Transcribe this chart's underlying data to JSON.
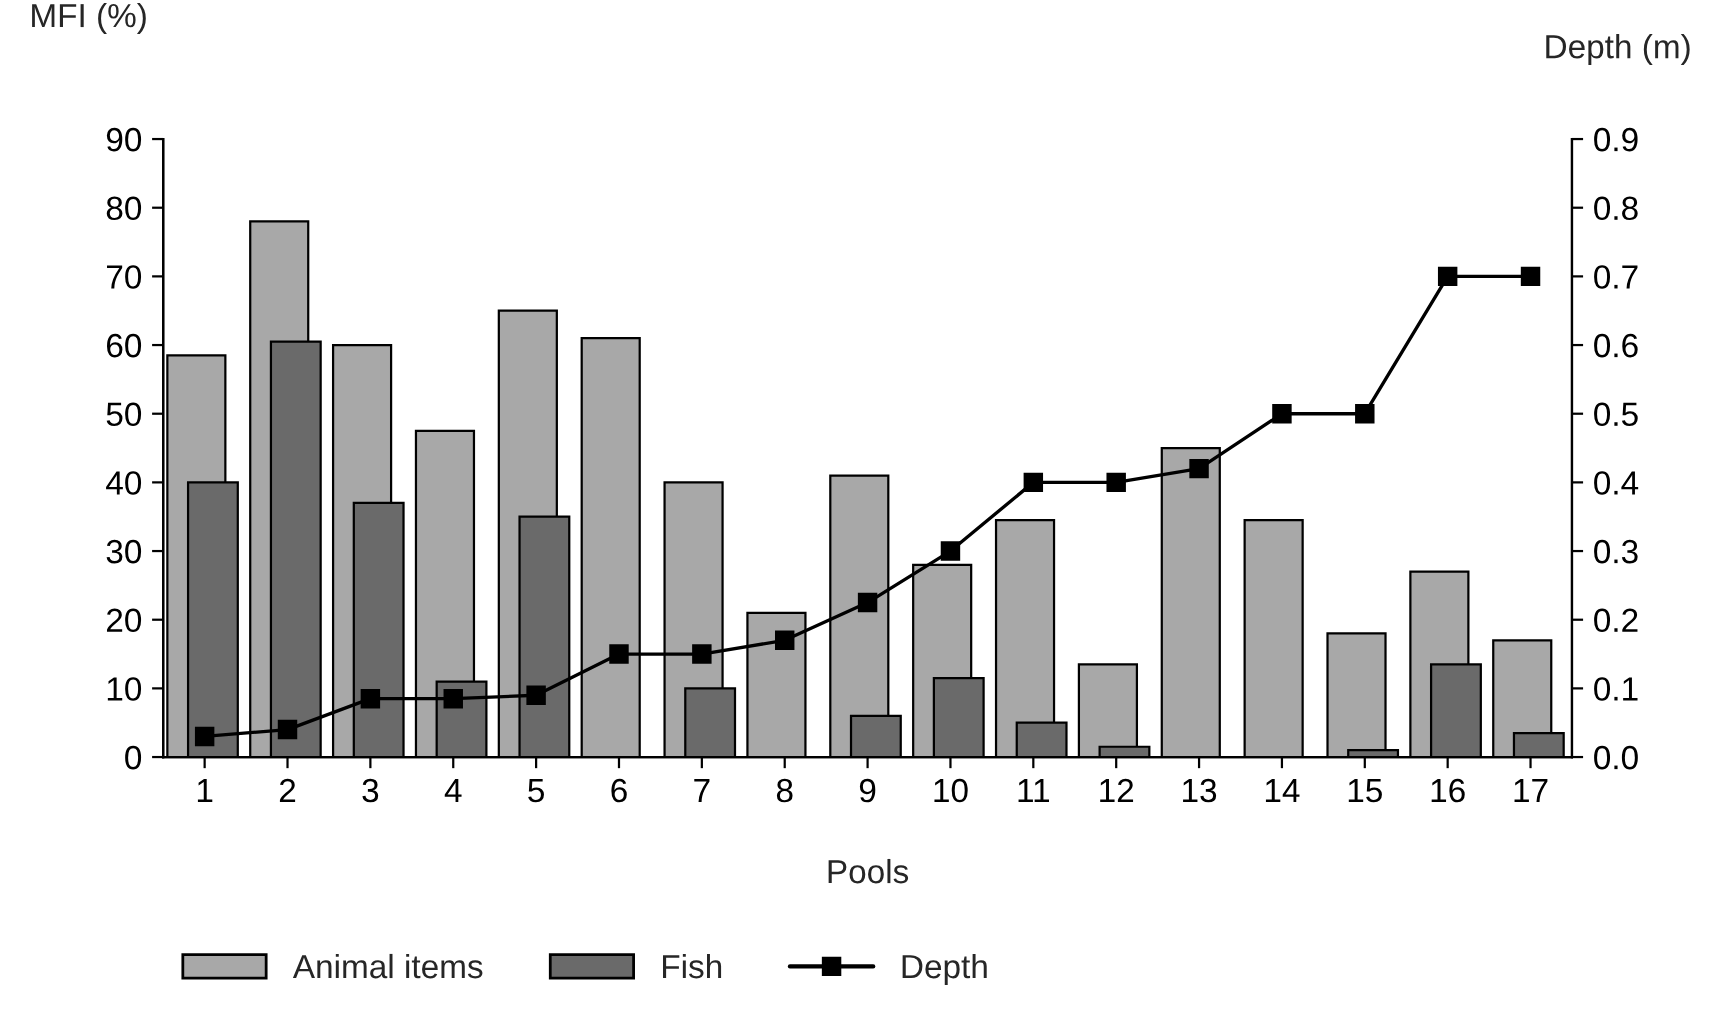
{
  "chart_data": {
    "type": "bar",
    "xlabel": "Pools",
    "ylabel": "MFI (%)",
    "y2label": "Depth (m)",
    "categories": [
      "1",
      "2",
      "3",
      "4",
      "5",
      "6",
      "7",
      "8",
      "9",
      "10",
      "11",
      "12",
      "13",
      "14",
      "15",
      "16",
      "17"
    ],
    "series": [
      {
        "name": "Animal items",
        "color": "#a8a8a8",
        "values": [
          58.5,
          78,
          60,
          47.5,
          65,
          61,
          40,
          21,
          41,
          28,
          34.5,
          13.5,
          45,
          34.5,
          18,
          27,
          17
        ]
      },
      {
        "name": "Fish",
        "color": "#6a6a6a",
        "values": [
          40,
          60.5,
          37,
          11,
          35,
          null,
          10,
          null,
          6,
          11.5,
          5,
          1.5,
          null,
          null,
          1,
          13.5,
          3.5
        ]
      },
      {
        "name": "Depth",
        "type": "line",
        "axis": "y2",
        "color": "#000000",
        "values": [
          0.03,
          0.04,
          0.085,
          0.085,
          0.09,
          0.15,
          0.15,
          0.17,
          0.225,
          0.3,
          0.4,
          0.4,
          0.42,
          0.5,
          0.5,
          0.7,
          0.7
        ]
      }
    ],
    "ylim": [
      0,
      90
    ],
    "yticks": [
      0,
      10,
      20,
      30,
      40,
      50,
      60,
      70,
      80,
      90
    ],
    "y2lim": [
      0,
      0.9
    ],
    "y2ticks": [
      {
        "value": 0,
        "label": "0.0"
      },
      {
        "value": 0.1,
        "label": "0.1"
      },
      {
        "value": 0.2,
        "label": "0.2"
      },
      {
        "value": 0.3,
        "label": "0.3"
      },
      {
        "value": 0.4,
        "label": "0.4"
      },
      {
        "value": 0.5,
        "label": "0.5"
      },
      {
        "value": 0.6,
        "label": "0.6"
      },
      {
        "value": 0.7,
        "label": "0.7"
      },
      {
        "value": 0.8,
        "label": "0.8"
      },
      {
        "value": 0.9,
        "label": "0.9"
      }
    ],
    "marker": "square",
    "line_style": "solid",
    "legend": "bottom",
    "grid": false
  }
}
